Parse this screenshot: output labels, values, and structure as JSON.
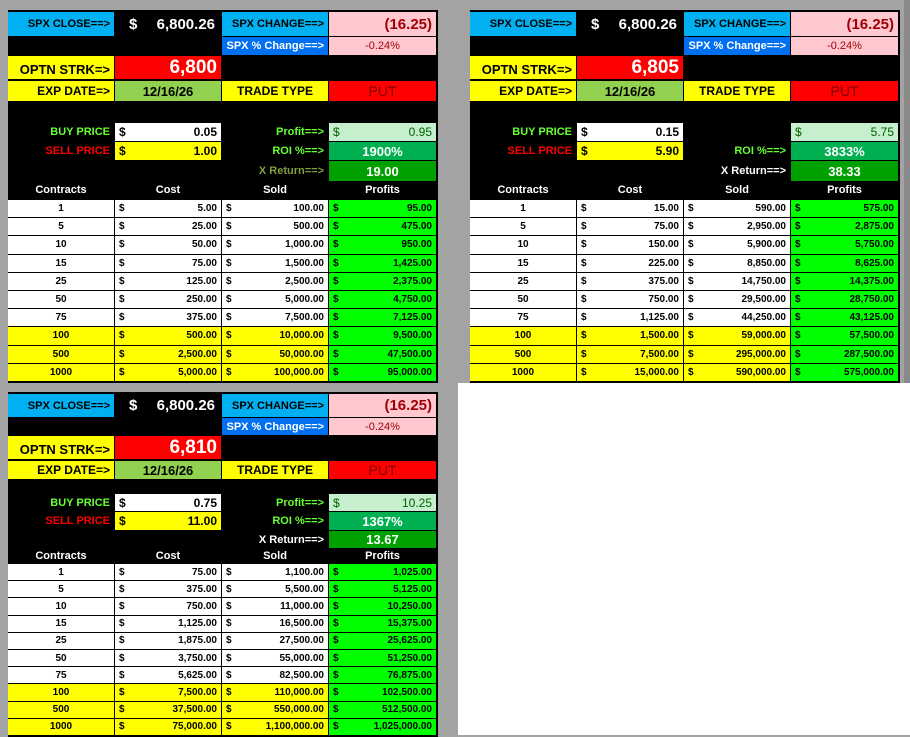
{
  "colors": {
    "background": "#a3a3a3",
    "cyan": "#00b0f0",
    "blue": "#0070f0",
    "pink": "#ffc7ce",
    "pink_text": "#9c0006",
    "yellow": "#ffff00",
    "red": "#ff0000",
    "olive": "#92d050",
    "light_green": "#c6efce",
    "dark_green_text": "#006100",
    "roi_green": "#00b050",
    "xret_green": "#00a000",
    "profit_green": "#00ff00"
  },
  "labels": {
    "spx_close": "SPX CLOSE==>",
    "spx_change": "SPX CHANGE==>",
    "spx_pct": "SPX % Change==>",
    "optn_strk": "OPTN STRK=>",
    "exp_date": "EXP DATE=>",
    "trade_type": "TRADE TYPE",
    "buy_price": "BUY PRICE",
    "sell_price": "SELL PRICE",
    "profit": "Profit==>",
    "roi": "ROI %==>",
    "x_return": "X Return==>",
    "dollar": "$",
    "col_contracts": "Contracts",
    "col_cost": "Cost",
    "col_sold": "Sold",
    "col_profits": "Profits"
  },
  "panels": [
    {
      "spx_close": "6,800.26",
      "spx_change": "(16.25)",
      "spx_pct": "-0.24%",
      "strike": "6,800",
      "exp_date": "12/16/26",
      "trade_type": "PUT",
      "buy": "0.05",
      "sell": "1.00",
      "profit_label": "Profit==>",
      "profit": "0.95",
      "roi": "1900%",
      "x_return": "19.00",
      "x_return_label_color": "#7f9f3f",
      "rows": [
        [
          "1",
          "5.00",
          "100.00",
          "95.00"
        ],
        [
          "5",
          "25.00",
          "500.00",
          "475.00"
        ],
        [
          "10",
          "50.00",
          "1,000.00",
          "950.00"
        ],
        [
          "15",
          "75.00",
          "1,500.00",
          "1,425.00"
        ],
        [
          "25",
          "125.00",
          "2,500.00",
          "2,375.00"
        ],
        [
          "50",
          "250.00",
          "5,000.00",
          "4,750.00"
        ],
        [
          "75",
          "375.00",
          "7,500.00",
          "7,125.00"
        ],
        [
          "100",
          "500.00",
          "10,000.00",
          "9,500.00"
        ],
        [
          "500",
          "2,500.00",
          "50,000.00",
          "47,500.00"
        ],
        [
          "1000",
          "5,000.00",
          "100,000.00",
          "95,000.00"
        ]
      ]
    },
    {
      "spx_close": "6,800.26",
      "spx_change": "(16.25)",
      "spx_pct": "-0.24%",
      "strike": "6,805",
      "exp_date": "12/16/26",
      "trade_type": "PUT",
      "buy": "0.15",
      "sell": "5.90",
      "profit_label": "",
      "profit": "5.75",
      "roi": "3833%",
      "x_return": "38.33",
      "x_return_label_color": "#ffffff",
      "rows": [
        [
          "1",
          "15.00",
          "590.00",
          "575.00"
        ],
        [
          "5",
          "75.00",
          "2,950.00",
          "2,875.00"
        ],
        [
          "10",
          "150.00",
          "5,900.00",
          "5,750.00"
        ],
        [
          "15",
          "225.00",
          "8,850.00",
          "8,625.00"
        ],
        [
          "25",
          "375.00",
          "14,750.00",
          "14,375.00"
        ],
        [
          "50",
          "750.00",
          "29,500.00",
          "28,750.00"
        ],
        [
          "75",
          "1,125.00",
          "44,250.00",
          "43,125.00"
        ],
        [
          "100",
          "1,500.00",
          "59,000.00",
          "57,500.00"
        ],
        [
          "500",
          "7,500.00",
          "295,000.00",
          "287,500.00"
        ],
        [
          "1000",
          "15,000.00",
          "590,000.00",
          "575,000.00"
        ]
      ]
    },
    {
      "spx_close": "6,800.26",
      "spx_change": "(16.25)",
      "spx_pct": "-0.24%",
      "strike": "6,810",
      "exp_date": "12/16/26",
      "trade_type": "PUT",
      "buy": "0.75",
      "sell": "11.00",
      "profit_label": "Profit==>",
      "profit": "10.25",
      "roi": "1367%",
      "x_return": "13.67",
      "x_return_label_color": "#ffffff",
      "rows": [
        [
          "1",
          "75.00",
          "1,100.00",
          "1,025.00"
        ],
        [
          "5",
          "375.00",
          "5,500.00",
          "5,125.00"
        ],
        [
          "10",
          "750.00",
          "11,000.00",
          "10,250.00"
        ],
        [
          "15",
          "1,125.00",
          "16,500.00",
          "15,375.00"
        ],
        [
          "25",
          "1,875.00",
          "27,500.00",
          "25,625.00"
        ],
        [
          "50",
          "3,750.00",
          "55,000.00",
          "51,250.00"
        ],
        [
          "75",
          "5,625.00",
          "82,500.00",
          "76,875.00"
        ],
        [
          "100",
          "7,500.00",
          "110,000.00",
          "102,500.00"
        ],
        [
          "500",
          "37,500.00",
          "550,000.00",
          "512,500.00"
        ],
        [
          "1000",
          "75,000.00",
          "1,100,000.00",
          "1,025,000.00"
        ]
      ]
    }
  ]
}
